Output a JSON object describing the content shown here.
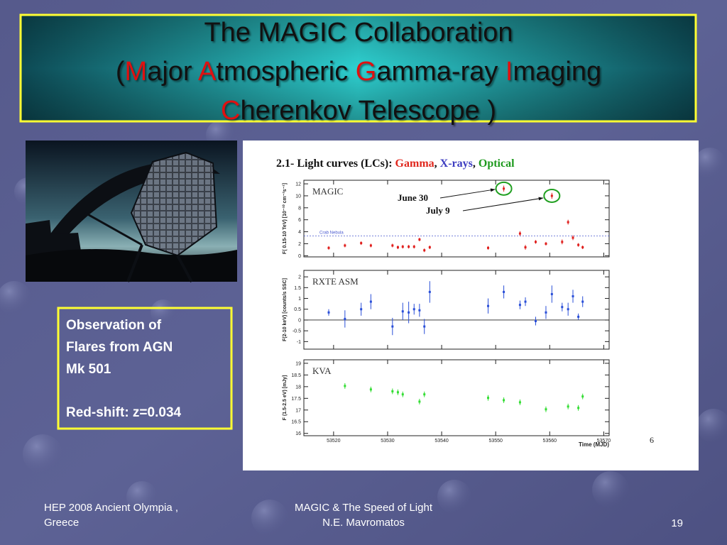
{
  "slide": {
    "title_lines": [
      [
        {
          "text": "The MAGIC Collaboration",
          "accent": false
        }
      ],
      [
        {
          "text": "(",
          "accent": false
        },
        {
          "text": "M",
          "accent": true
        },
        {
          "text": "ajor ",
          "accent": false
        },
        {
          "text": "A",
          "accent": true
        },
        {
          "text": "tmospheric ",
          "accent": false
        },
        {
          "text": "G",
          "accent": true
        },
        {
          "text": "amma-ray ",
          "accent": false
        },
        {
          "text": "I",
          "accent": true
        },
        {
          "text": "maging",
          "accent": false
        }
      ],
      [
        {
          "text": "C",
          "accent": true
        },
        {
          "text": "herenkov Telescope )",
          "accent": false
        }
      ]
    ],
    "textbox": [
      "Observation of",
      "Flares from AGN",
      "Mk 501",
      "Red-shift: z=0.034"
    ],
    "footer": {
      "left": [
        "HEP 2008 Ancient Olympia ,",
        "Greece"
      ],
      "center": [
        "MAGIC & The Speed of Light",
        "N.E. Mavromatos"
      ],
      "page": "19"
    }
  },
  "figure": {
    "title_parts": [
      {
        "text": "2.1- Light curves (LCs): ",
        "color": "#111111"
      },
      {
        "text": "Gamma",
        "color": "#e0281e"
      },
      {
        "text": ", ",
        "color": "#111111"
      },
      {
        "text": "X-rays",
        "color": "#3b3bc0"
      },
      {
        "text": ", ",
        "color": "#111111"
      },
      {
        "text": "Optical",
        "color": "#1e9a1e"
      }
    ],
    "annotations": [
      "June 30",
      "July 9"
    ],
    "xlabel": "Time (MJD)",
    "page_number": "6"
  },
  "chart_data": [
    {
      "type": "scatter",
      "ylabel": "F( 0.15-10 TeV) [10⁻¹⁰ cm⁻²s⁻¹]",
      "x": [
        53519.1,
        53522.1,
        53525.1,
        53526.9,
        53530.9,
        53531.9,
        53532.8,
        53533.9,
        53534.9,
        53535.9,
        53536.8,
        53537.8,
        53548.6,
        53551.5,
        53554.5,
        53555.5,
        53557.4,
        53559.3,
        53560.4,
        53562.3,
        53563.4,
        53564.3,
        53565.3,
        53566.1
      ],
      "series": [
        {
          "name": "MAGIC",
          "color": "#e0201e",
          "values": [
            1.3,
            1.7,
            2.1,
            1.7,
            1.7,
            1.4,
            1.5,
            1.5,
            1.5,
            2.7,
            0.9,
            1.4,
            1.3,
            11.2,
            3.7,
            1.4,
            2.3,
            2.0,
            10.0,
            2.3,
            5.6,
            3.0,
            1.8,
            1.4
          ],
          "errors": [
            0.3,
            0.3,
            0.3,
            0.3,
            0.3,
            0.3,
            0.3,
            0.3,
            0.3,
            0.3,
            0.3,
            0.3,
            0.3,
            0.5,
            0.4,
            0.4,
            0.3,
            0.3,
            0.5,
            0.4,
            0.4,
            0.4,
            0.3,
            0.3
          ]
        }
      ],
      "reference_line": {
        "label": "Crab Nebula",
        "value": 3.3,
        "color": "#4a5ad0"
      },
      "xlim": [
        53514.5,
        53571
      ],
      "ylim": [
        -0.2,
        12.6
      ],
      "yticks": [
        0,
        2,
        4,
        6,
        8,
        10,
        12
      ]
    },
    {
      "type": "scatter",
      "ylabel": "F(2-10 keV) [counts/s SSC]",
      "x": [
        53519.1,
        53522.1,
        53525.1,
        53526.9,
        53530.9,
        53532.8,
        53533.9,
        53534.9,
        53535.9,
        53536.8,
        53537.8,
        53548.6,
        53551.5,
        53554.5,
        53555.5,
        53557.4,
        53559.3,
        53560.4,
        53562.3,
        53563.4,
        53564.3,
        53565.3,
        53566.1
      ],
      "series": [
        {
          "name": "RXTE ASM",
          "color": "#2a4fd8",
          "values": [
            0.35,
            0.05,
            0.5,
            0.85,
            -0.3,
            0.4,
            0.35,
            0.5,
            0.45,
            -0.3,
            1.3,
            0.65,
            1.3,
            0.7,
            0.85,
            -0.05,
            0.35,
            1.2,
            0.6,
            0.5,
            1.1,
            0.15,
            0.85
          ],
          "errors": [
            0.15,
            0.4,
            0.3,
            0.35,
            0.4,
            0.4,
            0.5,
            0.25,
            0.3,
            0.35,
            0.5,
            0.35,
            0.3,
            0.2,
            0.2,
            0.2,
            0.3,
            0.4,
            0.2,
            0.3,
            0.3,
            0.15,
            0.25
          ]
        }
      ],
      "zero_line": true,
      "xlim": [
        53514.5,
        53571
      ],
      "ylim": [
        -1.35,
        2.3
      ],
      "yticks": [
        2,
        1.5,
        1,
        0.5,
        0,
        -0.5,
        -1
      ]
    },
    {
      "type": "scatter",
      "ylabel": "F (1.5-2.5 eV) [mJy]",
      "x": [
        53522.1,
        53526.9,
        53530.9,
        53531.9,
        53532.8,
        53535.9,
        53536.8,
        53548.6,
        53551.5,
        53554.5,
        53559.3,
        53563.4,
        53565.3,
        53566.1
      ],
      "series": [
        {
          "name": "KVA",
          "color": "#33dd33",
          "values": [
            18.03,
            17.88,
            17.8,
            17.76,
            17.67,
            17.36,
            17.67,
            17.52,
            17.42,
            17.33,
            17.03,
            17.15,
            17.09,
            17.58
          ],
          "errors": [
            0.12,
            0.12,
            0.12,
            0.12,
            0.12,
            0.12,
            0.12,
            0.12,
            0.12,
            0.12,
            0.12,
            0.12,
            0.12,
            0.12
          ]
        }
      ],
      "xlim": [
        53514.5,
        53571
      ],
      "ylim": [
        15.9,
        19.15
      ],
      "yticks": [
        19,
        18.5,
        18,
        17.5,
        17,
        16.5,
        16
      ],
      "xticks": [
        53520,
        53530,
        53540,
        53550,
        53560,
        53570
      ]
    }
  ]
}
